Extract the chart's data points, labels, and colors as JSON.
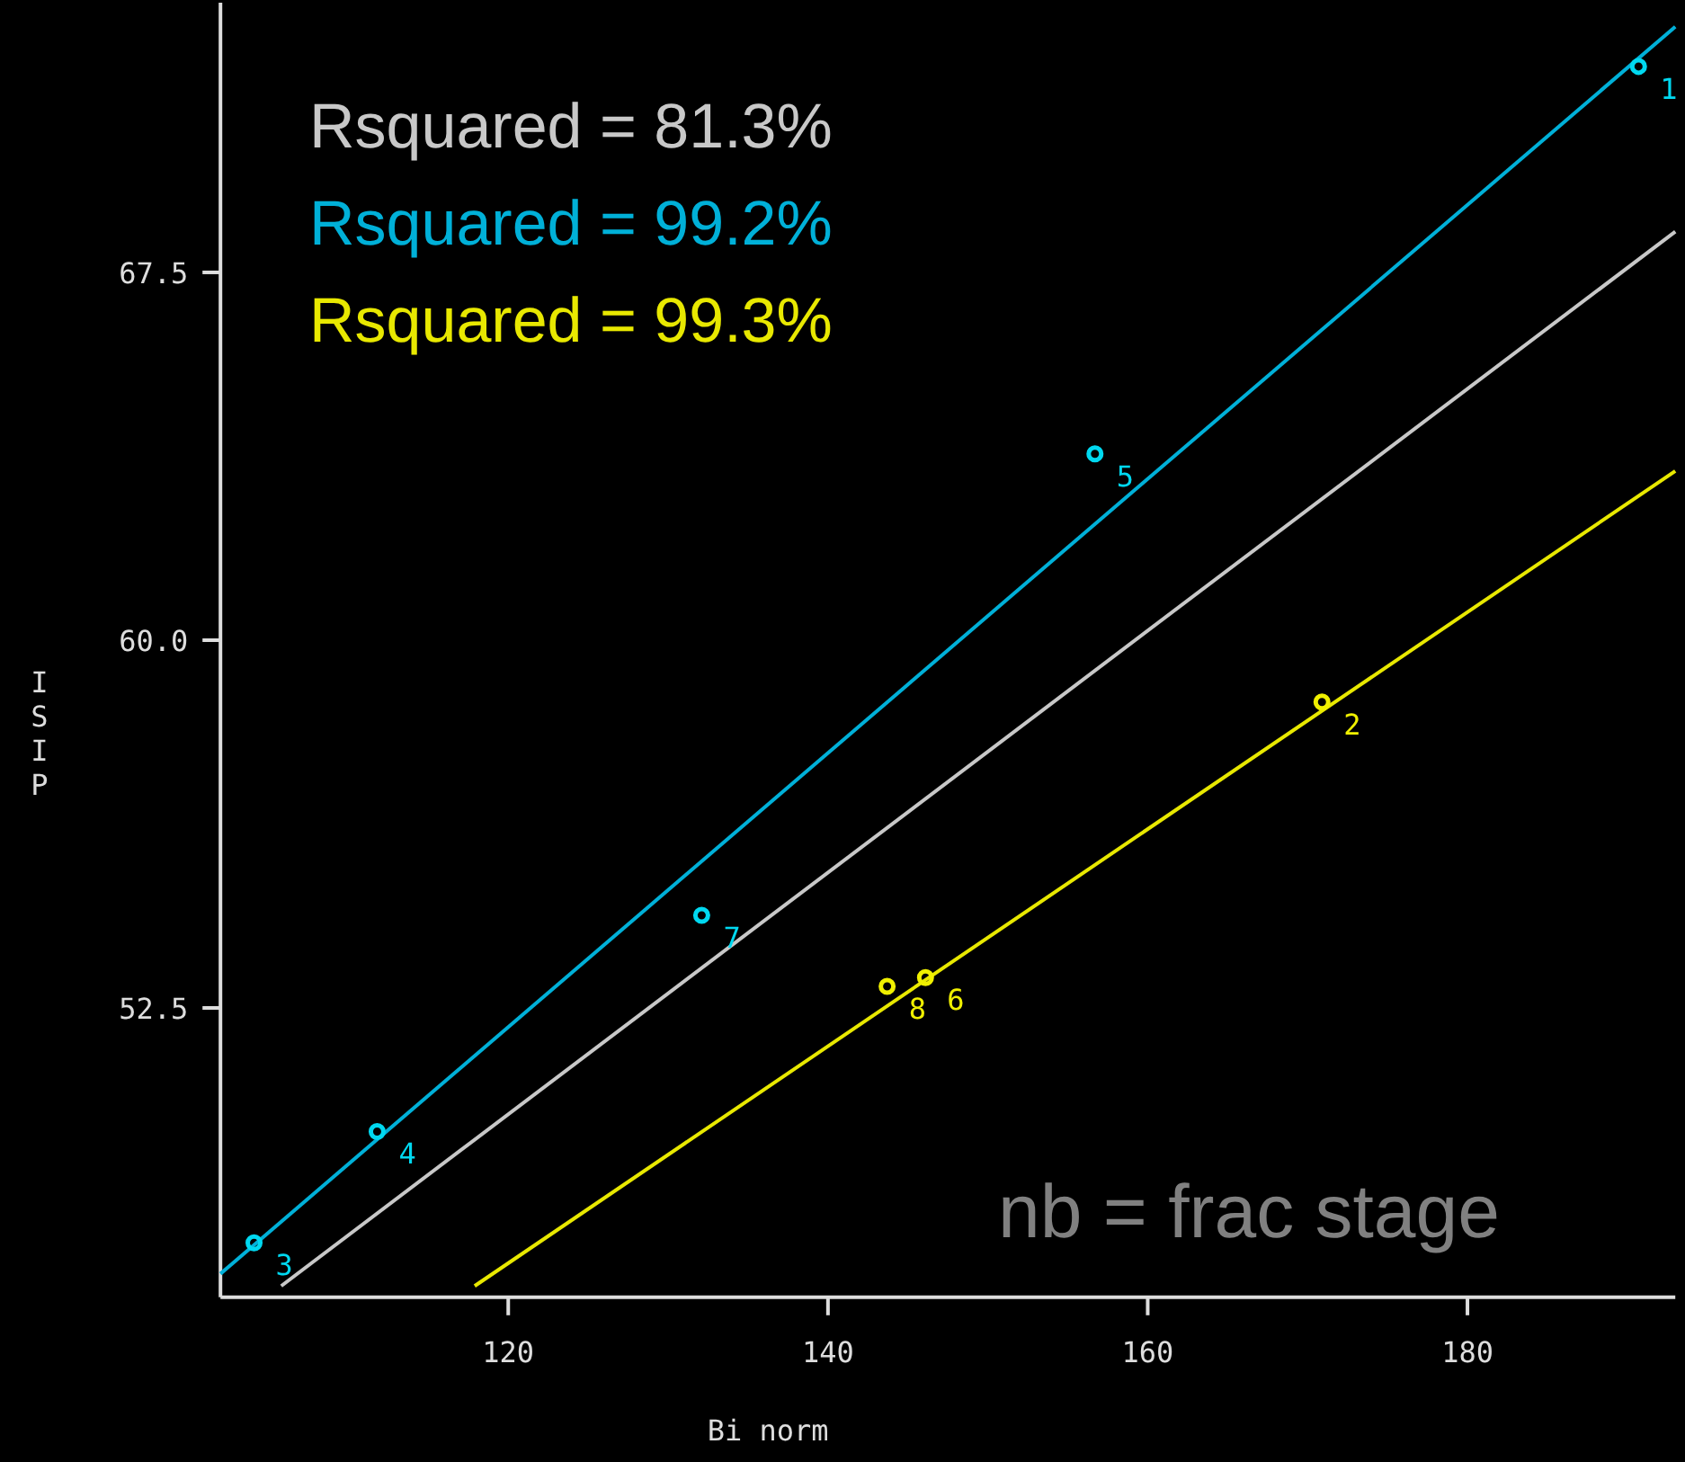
{
  "chart_data": {
    "type": "scatter",
    "xlabel": "Bi norm",
    "ylabel": "ISIP",
    "xlim": [
      102,
      193
    ],
    "ylim": [
      46.6,
      73
    ],
    "xticks": [
      120,
      140,
      160,
      180
    ],
    "yticks": [
      {
        "value": 52.5,
        "label": "52.5"
      },
      {
        "value": 60,
        "label": "60.0"
      },
      {
        "value": 67.5,
        "label": "67.5"
      }
    ],
    "grid": false,
    "legend": "top left",
    "annotations": [
      "nb = frac stage",
      {
        "text": "1",
        "x": 190.7,
        "y": 71.7
      },
      {
        "text": "5",
        "x": 156.7,
        "y": 63.8
      },
      {
        "text": "7",
        "x": 132.1,
        "y": 54.39
      },
      {
        "text": "4",
        "x": 111.8,
        "y": 49.98
      },
      {
        "text": "3",
        "x": 104.1,
        "y": 47.71
      },
      {
        "text": "2",
        "x": 170.9,
        "y": 58.74
      },
      {
        "text": "8",
        "x": 143.7,
        "y": 52.94
      },
      {
        "text": "6",
        "x": 146.1,
        "y": 53.12
      }
    ],
    "series": [
      {
        "name": "Rsquared = 81.3%",
        "type": "line",
        "color": "#c8c8c8",
        "x": [
          105.8,
          193
        ],
        "values": [
          46.83,
          68.33
        ]
      },
      {
        "name": "Rsquared = 99.2%",
        "type": "line",
        "color": "#00b0d8",
        "x": [
          102,
          193
        ],
        "values": [
          47.08,
          72.51
        ]
      },
      {
        "name": "Rsquared = 99.3%",
        "type": "line",
        "color": "#e8e800",
        "x": [
          117.9,
          193
        ],
        "values": [
          46.83,
          63.45
        ]
      },
      {
        "marker": "circle",
        "color": "#00d8f0",
        "x": [
          190.7,
          156.7,
          132.1,
          111.8,
          104.1
        ],
        "values": [
          71.7,
          63.8,
          54.39,
          49.98,
          47.71
        ]
      },
      {
        "marker": "circle",
        "color": "#f0f000",
        "x": [
          170.9,
          143.7,
          146.1
        ],
        "values": [
          58.74,
          52.94,
          53.12
        ]
      }
    ]
  }
}
